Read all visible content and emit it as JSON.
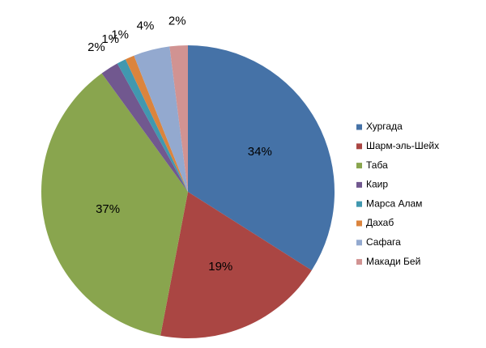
{
  "chart_data": {
    "type": "pie",
    "categories": [
      "Хургада",
      "Шарм-эль-Шейх",
      "Таба",
      "Каир",
      "Марса Алам",
      "Дахаб",
      "Сафага",
      "Макади Бей"
    ],
    "values": [
      34,
      19,
      37,
      2,
      1,
      1,
      4,
      2
    ],
    "value_labels": [
      "34%",
      "19%",
      "37%",
      "2%",
      "1%",
      "1%",
      "4%",
      "2%"
    ],
    "colors": [
      "#4572a7",
      "#aa4643",
      "#89a54e",
      "#71588f",
      "#4198af",
      "#db843d",
      "#93a9cf",
      "#d19392"
    ],
    "legend": "right"
  }
}
